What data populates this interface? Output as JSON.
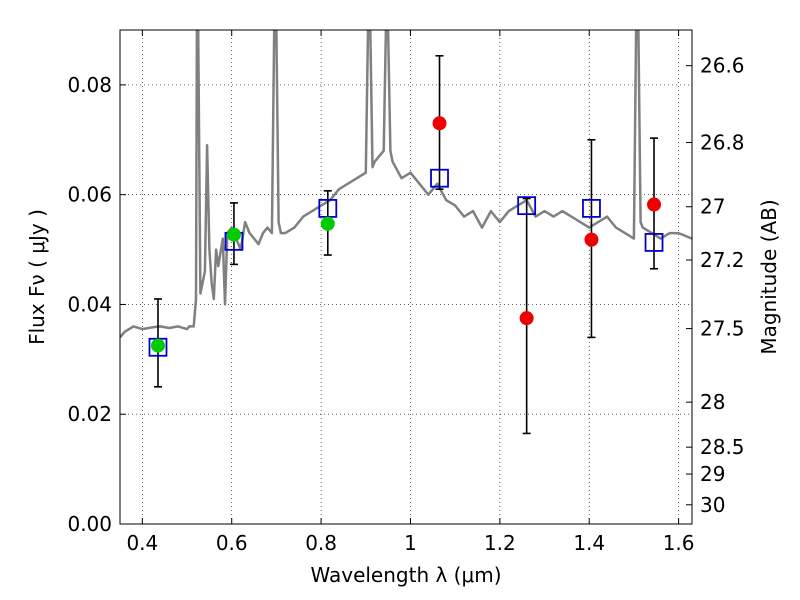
{
  "chart_data": {
    "type": "scatter",
    "title": "",
    "xlabel": "Wavelength  λ (μm)",
    "ylabel": "Flux  Fν  ( μJy )",
    "ylabel_right": "Magnitude (AB)",
    "xlim": [
      0.35,
      1.63
    ],
    "ylim": [
      0.0,
      0.09
    ],
    "grid": true,
    "x_ticks": [
      0.4,
      0.6,
      0.8,
      1.0,
      1.2,
      1.4,
      1.6
    ],
    "x_tick_labels": [
      "0.4",
      "0.6",
      "0.8",
      "1",
      "1.2",
      "1.4",
      "1.6"
    ],
    "y_ticks": [
      0.0,
      0.02,
      0.04,
      0.06,
      0.08
    ],
    "y_tick_labels": [
      "0.00",
      "0.02",
      "0.04",
      "0.06",
      "0.08"
    ],
    "right_ticks": [
      {
        "label": "26.6",
        "flux": 0.0835
      },
      {
        "label": "26.8",
        "flux": 0.0695
      },
      {
        "label": "27",
        "flux": 0.0578
      },
      {
        "label": "27.2",
        "flux": 0.0481
      },
      {
        "label": "27.5",
        "flux": 0.0356
      },
      {
        "label": "28",
        "flux": 0.0222
      },
      {
        "label": "28.5",
        "flux": 0.014
      },
      {
        "label": "29",
        "flux": 0.0091
      },
      {
        "label": "30",
        "flux": 0.0035
      }
    ],
    "series": [
      {
        "kind": "line",
        "color": "#808080",
        "x": [
          0.35,
          0.36,
          0.38,
          0.4,
          0.42,
          0.44,
          0.46,
          0.48,
          0.5,
          0.505,
          0.51,
          0.515,
          0.52,
          0.522,
          0.525,
          0.53,
          0.54,
          0.545,
          0.55,
          0.555,
          0.56,
          0.565,
          0.57,
          0.58,
          0.585,
          0.59,
          0.6,
          0.61,
          0.62,
          0.63,
          0.64,
          0.65,
          0.66,
          0.67,
          0.68,
          0.69,
          0.695,
          0.7,
          0.705,
          0.71,
          0.72,
          0.74,
          0.76,
          0.78,
          0.8,
          0.82,
          0.84,
          0.86,
          0.88,
          0.9,
          0.905,
          0.91,
          0.915,
          0.92,
          0.93,
          0.94,
          0.945,
          0.95,
          0.955,
          0.96,
          0.98,
          1.0,
          1.02,
          1.04,
          1.06,
          1.08,
          1.1,
          1.12,
          1.14,
          1.16,
          1.18,
          1.2,
          1.22,
          1.24,
          1.26,
          1.28,
          1.3,
          1.32,
          1.34,
          1.36,
          1.38,
          1.4,
          1.42,
          1.44,
          1.46,
          1.48,
          1.5,
          1.505,
          1.51,
          1.515,
          1.52,
          1.54,
          1.56,
          1.58,
          1.6,
          1.63
        ],
        "y": [
          0.034,
          0.035,
          0.036,
          0.0355,
          0.0358,
          0.036,
          0.0357,
          0.036,
          0.0355,
          0.036,
          0.036,
          0.036,
          0.041,
          0.09,
          0.09,
          0.042,
          0.046,
          0.069,
          0.05,
          0.044,
          0.041,
          0.05,
          0.047,
          0.052,
          0.04,
          0.053,
          0.054,
          0.052,
          0.05,
          0.055,
          0.053,
          0.052,
          0.051,
          0.053,
          0.054,
          0.053,
          0.09,
          0.09,
          0.055,
          0.053,
          0.053,
          0.054,
          0.056,
          0.057,
          0.058,
          0.059,
          0.061,
          0.062,
          0.063,
          0.064,
          0.09,
          0.09,
          0.065,
          0.066,
          0.067,
          0.068,
          0.09,
          0.09,
          0.068,
          0.066,
          0.063,
          0.064,
          0.062,
          0.06,
          0.062,
          0.059,
          0.058,
          0.056,
          0.057,
          0.054,
          0.057,
          0.055,
          0.057,
          0.058,
          0.059,
          0.056,
          0.057,
          0.056,
          0.057,
          0.056,
          0.055,
          0.054,
          0.055,
          0.056,
          0.054,
          0.053,
          0.052,
          0.09,
          0.09,
          0.055,
          0.054,
          0.053,
          0.052,
          0.053,
          0.053,
          0.052
        ]
      },
      {
        "kind": "errorbar",
        "color": "#000000",
        "x": [
          0.435,
          0.605,
          0.815,
          1.065,
          1.26,
          1.405,
          1.545
        ],
        "low": [
          0.025,
          0.0473,
          0.049,
          0.061,
          0.0165,
          0.034,
          0.0465
        ],
        "high": [
          0.041,
          0.0585,
          0.0607,
          0.0853,
          0.0593,
          0.07,
          0.0703
        ]
      },
      {
        "kind": "square",
        "color": "#0000cc",
        "x": [
          0.435,
          0.605,
          0.815,
          1.065,
          1.26,
          1.405,
          1.545
        ],
        "y": [
          0.0322,
          0.0515,
          0.0575,
          0.063,
          0.058,
          0.0575,
          0.0513
        ]
      },
      {
        "kind": "circle",
        "color": "#00cc00",
        "x": [
          0.435,
          0.605,
          0.815
        ],
        "y": [
          0.0325,
          0.0527,
          0.0547
        ]
      },
      {
        "kind": "circle",
        "color": "#ee0000",
        "x": [
          1.065,
          1.26,
          1.405,
          1.545
        ],
        "y": [
          0.073,
          0.0375,
          0.0518,
          0.0582
        ]
      }
    ]
  }
}
